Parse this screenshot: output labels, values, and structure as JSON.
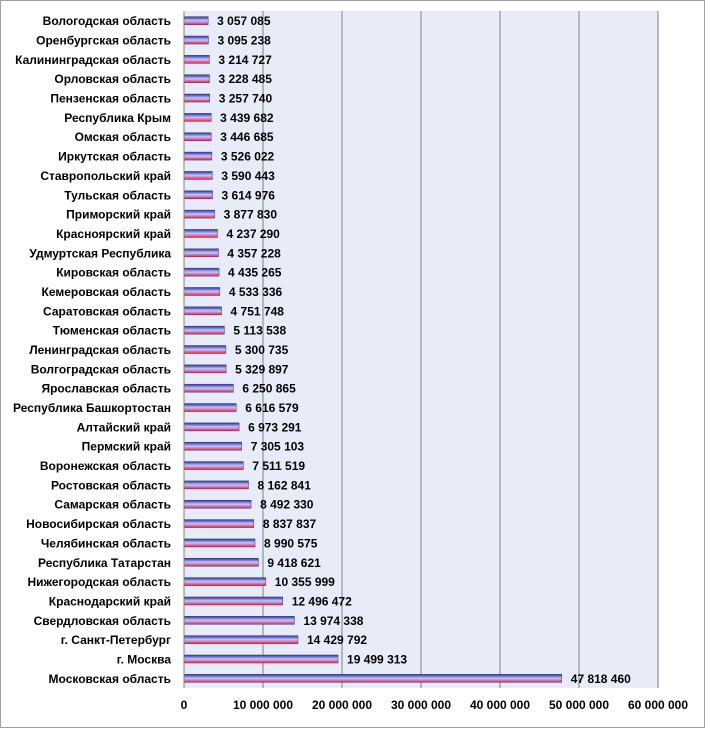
{
  "chart_data": {
    "type": "bar",
    "orientation": "horizontal",
    "categories": [
      "Вологодская область",
      "Оренбургская область",
      "Калининградская область",
      "Орловская область",
      "Пензенская область",
      "Республика Крым",
      "Омская область",
      "Иркутская область",
      "Ставропольский край",
      "Тульская область",
      "Приморский край",
      "Красноярский край",
      "Удмуртская Республика",
      "Кировская область",
      "Кемеровская область",
      "Саратовская область",
      "Тюменская область",
      "Ленинградская область",
      "Волгоградская область",
      "Ярославская область",
      "Республика Башкортостан",
      "Алтайский край",
      "Пермский край",
      "Воронежская область",
      "Ростовская область",
      "Самарская область",
      "Новосибирская область",
      "Челябинская область",
      "Республика Татарстан",
      "Нижегородская область",
      "Краснодарский край",
      "Свердловская область",
      "г. Санкт-Петербург",
      "г. Москва",
      "Московская область"
    ],
    "values": [
      3057085,
      3095238,
      3214727,
      3228485,
      3257740,
      3439682,
      3446685,
      3526022,
      3590443,
      3614976,
      3877830,
      4237290,
      4357228,
      4435265,
      4533336,
      4751748,
      5113538,
      5300735,
      5329897,
      6250865,
      6616579,
      6973291,
      7305103,
      7511519,
      8162841,
      8492330,
      8837837,
      8990575,
      9418621,
      10355999,
      12496472,
      13974338,
      14429792,
      19499313,
      47818460
    ],
    "value_labels": [
      "3 057 085",
      "3 095 238",
      "3 214 727",
      "3 228 485",
      "3 257 740",
      "3 439 682",
      "3 446 685",
      "3 526 022",
      "3 590 443",
      "3 614 976",
      "3 877 830",
      "4 237 290",
      "4 357 228",
      "4 435 265",
      "4 533 336",
      "4 751 748",
      "5 113 538",
      "5 300 735",
      "5 329 897",
      "6 250 865",
      "6 616 579",
      "6 973 291",
      "7 305 103",
      "7 511 519",
      "8 162 841",
      "8 492 330",
      "8 837 837",
      "8 990 575",
      "9 418 621",
      "10 355 999",
      "12 496 472",
      "13 974 338",
      "14 429 792",
      "19 499 313",
      "47 818 460"
    ],
    "xlim": [
      0,
      60000000
    ],
    "x_ticks": [
      0,
      10000000,
      20000000,
      30000000,
      40000000,
      50000000,
      60000000
    ],
    "x_tick_labels": [
      "0",
      "10 000 000",
      "20 000 000",
      "30 000 000",
      "40 000 000",
      "50 000 000",
      "60 000 000"
    ],
    "title": "",
    "xlabel": "",
    "ylabel": "",
    "grid": true,
    "legend": false,
    "colors": {
      "plot_background": "#e8ecf8",
      "gridline": "#7f7f7f",
      "bar_top": "#2f2f9f",
      "bar_bottom": "#ff1a3a",
      "text": "#000000",
      "border": "#a0a0a0"
    }
  }
}
